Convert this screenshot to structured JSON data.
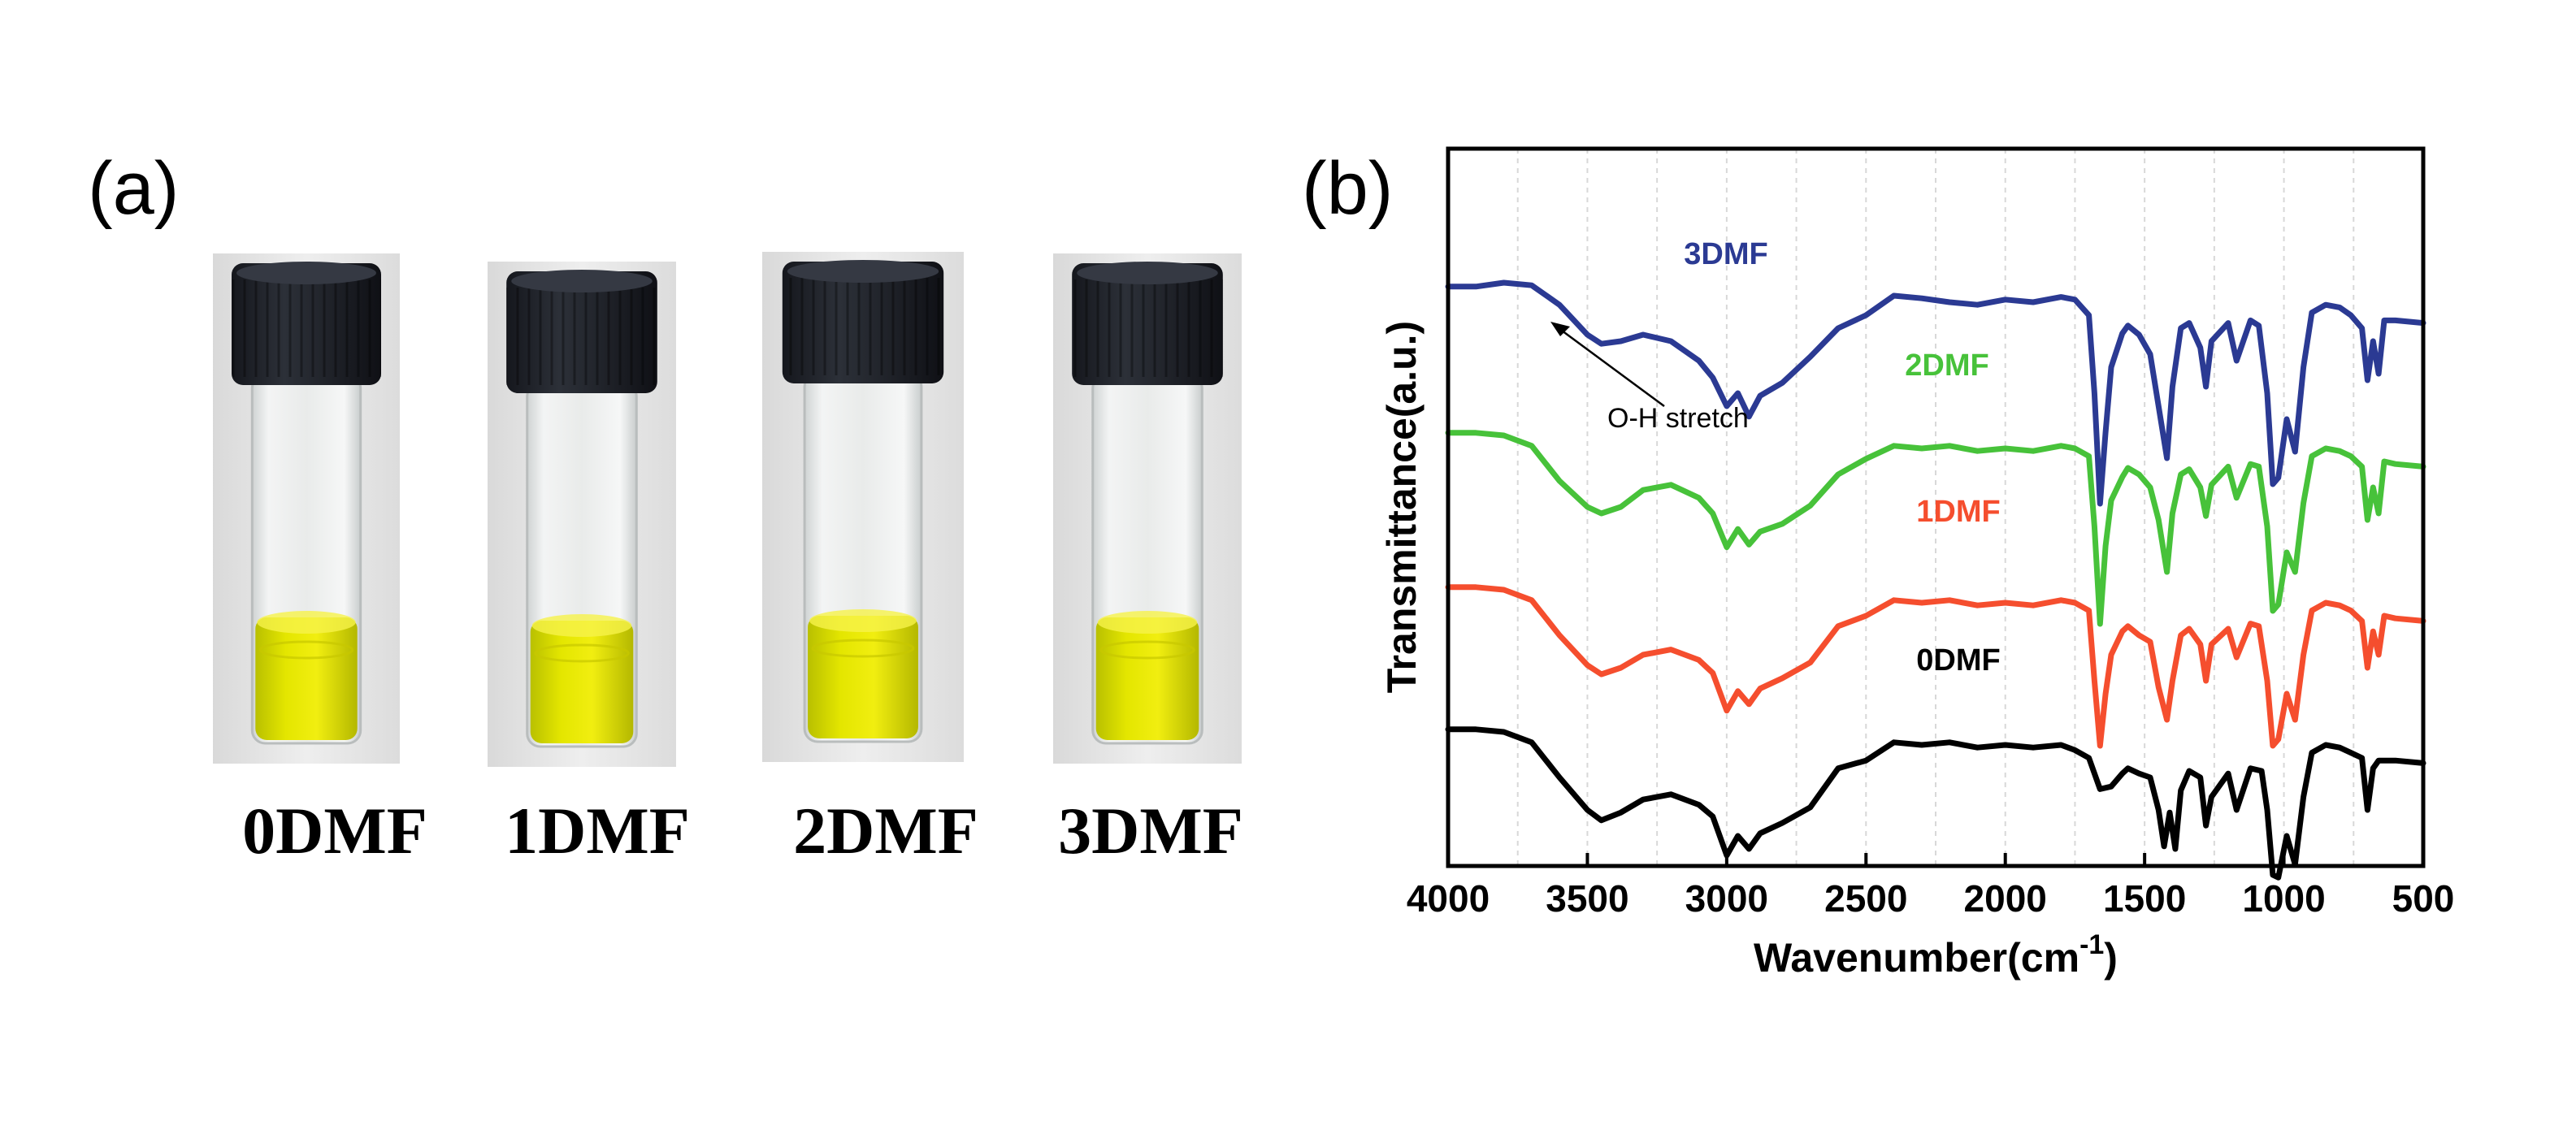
{
  "panel_a": {
    "label": "(a)",
    "vials": [
      {
        "label": "0DMF"
      },
      {
        "label": "1DMF"
      },
      {
        "label": "2DMF"
      },
      {
        "label": "3DMF"
      }
    ]
  },
  "panel_b": {
    "label": "(b)"
  },
  "chart_data": {
    "type": "line",
    "title": "",
    "xlabel": "Wavenumber(cm",
    "xlabel_sup": "-1",
    "xlabel_tail": ")",
    "ylabel": "Transmittance(a.u.)",
    "xlim": [
      4000,
      500
    ],
    "x_ticks": [
      4000,
      3500,
      3000,
      2500,
      2000,
      1500,
      1000,
      500
    ],
    "grid": "vertical dashed at 250 cm-1 intervals",
    "y_units": "arbitrary",
    "annotation": {
      "text": "O-H stretch",
      "target_x": 3400
    },
    "series": [
      {
        "name": "0DMF",
        "color": "#000000",
        "offset": 0,
        "points": [
          [
            4000,
            92
          ],
          [
            3900,
            92
          ],
          [
            3800,
            90
          ],
          [
            3700,
            82
          ],
          [
            3600,
            55
          ],
          [
            3500,
            30
          ],
          [
            3450,
            22
          ],
          [
            3380,
            28
          ],
          [
            3300,
            38
          ],
          [
            3200,
            42
          ],
          [
            3100,
            34
          ],
          [
            3050,
            25
          ],
          [
            3000,
            -5
          ],
          [
            2960,
            10
          ],
          [
            2920,
            0
          ],
          [
            2880,
            12
          ],
          [
            2800,
            20
          ],
          [
            2700,
            32
          ],
          [
            2600,
            62
          ],
          [
            2500,
            68
          ],
          [
            2400,
            82
          ],
          [
            2300,
            80
          ],
          [
            2200,
            82
          ],
          [
            2100,
            78
          ],
          [
            2000,
            80
          ],
          [
            1900,
            78
          ],
          [
            1800,
            80
          ],
          [
            1750,
            76
          ],
          [
            1700,
            70
          ],
          [
            1660,
            46
          ],
          [
            1620,
            48
          ],
          [
            1580,
            58
          ],
          [
            1560,
            62
          ],
          [
            1520,
            58
          ],
          [
            1480,
            55
          ],
          [
            1450,
            30
          ],
          [
            1430,
            2
          ],
          [
            1410,
            28
          ],
          [
            1390,
            0
          ],
          [
            1370,
            45
          ],
          [
            1340,
            60
          ],
          [
            1300,
            55
          ],
          [
            1280,
            18
          ],
          [
            1260,
            40
          ],
          [
            1200,
            58
          ],
          [
            1170,
            30
          ],
          [
            1120,
            62
          ],
          [
            1080,
            60
          ],
          [
            1060,
            30
          ],
          [
            1040,
            -20
          ],
          [
            1020,
            -22
          ],
          [
            990,
            10
          ],
          [
            960,
            -12
          ],
          [
            930,
            40
          ],
          [
            900,
            74
          ],
          [
            850,
            80
          ],
          [
            800,
            78
          ],
          [
            760,
            74
          ],
          [
            720,
            70
          ],
          [
            700,
            30
          ],
          [
            680,
            62
          ],
          [
            660,
            68
          ],
          [
            600,
            68
          ],
          [
            500,
            66
          ]
        ]
      },
      {
        "name": "1DMF",
        "color": "#f54e2e",
        "offset": 175,
        "points": [
          [
            4000,
            92
          ],
          [
            3900,
            92
          ],
          [
            3800,
            90
          ],
          [
            3700,
            82
          ],
          [
            3600,
            55
          ],
          [
            3500,
            32
          ],
          [
            3450,
            25
          ],
          [
            3380,
            30
          ],
          [
            3300,
            40
          ],
          [
            3200,
            44
          ],
          [
            3100,
            36
          ],
          [
            3050,
            26
          ],
          [
            3000,
            -3
          ],
          [
            2960,
            12
          ],
          [
            2920,
            2
          ],
          [
            2880,
            14
          ],
          [
            2800,
            22
          ],
          [
            2700,
            34
          ],
          [
            2600,
            62
          ],
          [
            2500,
            70
          ],
          [
            2400,
            82
          ],
          [
            2300,
            80
          ],
          [
            2200,
            82
          ],
          [
            2100,
            78
          ],
          [
            2000,
            80
          ],
          [
            1900,
            78
          ],
          [
            1800,
            82
          ],
          [
            1750,
            80
          ],
          [
            1700,
            74
          ],
          [
            1680,
            20
          ],
          [
            1660,
            -30
          ],
          [
            1640,
            10
          ],
          [
            1620,
            40
          ],
          [
            1580,
            58
          ],
          [
            1560,
            62
          ],
          [
            1520,
            55
          ],
          [
            1480,
            50
          ],
          [
            1450,
            15
          ],
          [
            1420,
            -10
          ],
          [
            1400,
            20
          ],
          [
            1370,
            55
          ],
          [
            1340,
            60
          ],
          [
            1300,
            48
          ],
          [
            1280,
            20
          ],
          [
            1260,
            48
          ],
          [
            1200,
            60
          ],
          [
            1170,
            38
          ],
          [
            1120,
            64
          ],
          [
            1090,
            62
          ],
          [
            1060,
            20
          ],
          [
            1040,
            -30
          ],
          [
            1020,
            -25
          ],
          [
            990,
            10
          ],
          [
            960,
            -10
          ],
          [
            930,
            40
          ],
          [
            900,
            74
          ],
          [
            850,
            80
          ],
          [
            800,
            78
          ],
          [
            760,
            74
          ],
          [
            720,
            66
          ],
          [
            700,
            30
          ],
          [
            680,
            58
          ],
          [
            660,
            40
          ],
          [
            640,
            70
          ],
          [
            600,
            68
          ],
          [
            500,
            66
          ]
        ]
      },
      {
        "name": "2DMF",
        "color": "#47c23a",
        "offset": 365,
        "points": [
          [
            4000,
            92
          ],
          [
            3900,
            92
          ],
          [
            3800,
            90
          ],
          [
            3700,
            82
          ],
          [
            3600,
            55
          ],
          [
            3500,
            35
          ],
          [
            3450,
            30
          ],
          [
            3380,
            35
          ],
          [
            3300,
            48
          ],
          [
            3200,
            52
          ],
          [
            3100,
            42
          ],
          [
            3050,
            30
          ],
          [
            3000,
            4
          ],
          [
            2960,
            18
          ],
          [
            2920,
            6
          ],
          [
            2880,
            16
          ],
          [
            2800,
            22
          ],
          [
            2700,
            36
          ],
          [
            2600,
            60
          ],
          [
            2500,
            72
          ],
          [
            2400,
            82
          ],
          [
            2300,
            80
          ],
          [
            2200,
            82
          ],
          [
            2100,
            78
          ],
          [
            2000,
            80
          ],
          [
            1900,
            78
          ],
          [
            1800,
            82
          ],
          [
            1750,
            80
          ],
          [
            1700,
            74
          ],
          [
            1680,
            20
          ],
          [
            1660,
            -55
          ],
          [
            1640,
            5
          ],
          [
            1620,
            40
          ],
          [
            1580,
            58
          ],
          [
            1560,
            65
          ],
          [
            1520,
            60
          ],
          [
            1480,
            50
          ],
          [
            1450,
            25
          ],
          [
            1420,
            -15
          ],
          [
            1400,
            30
          ],
          [
            1370,
            60
          ],
          [
            1340,
            64
          ],
          [
            1300,
            50
          ],
          [
            1280,
            28
          ],
          [
            1260,
            52
          ],
          [
            1200,
            66
          ],
          [
            1170,
            42
          ],
          [
            1120,
            68
          ],
          [
            1090,
            66
          ],
          [
            1060,
            20
          ],
          [
            1040,
            -45
          ],
          [
            1020,
            -40
          ],
          [
            990,
            0
          ],
          [
            960,
            -15
          ],
          [
            930,
            38
          ],
          [
            900,
            74
          ],
          [
            850,
            80
          ],
          [
            800,
            78
          ],
          [
            760,
            74
          ],
          [
            720,
            66
          ],
          [
            700,
            25
          ],
          [
            680,
            50
          ],
          [
            660,
            30
          ],
          [
            640,
            70
          ],
          [
            600,
            68
          ],
          [
            500,
            66
          ]
        ]
      },
      {
        "name": "3DMF",
        "color": "#2b3a93",
        "offset": 545,
        "points": [
          [
            4000,
            92
          ],
          [
            3900,
            92
          ],
          [
            3800,
            95
          ],
          [
            3700,
            93
          ],
          [
            3600,
            78
          ],
          [
            3500,
            55
          ],
          [
            3450,
            48
          ],
          [
            3380,
            50
          ],
          [
            3300,
            55
          ],
          [
            3200,
            50
          ],
          [
            3100,
            35
          ],
          [
            3050,
            22
          ],
          [
            3000,
            0
          ],
          [
            2960,
            10
          ],
          [
            2920,
            -8
          ],
          [
            2880,
            8
          ],
          [
            2800,
            18
          ],
          [
            2700,
            38
          ],
          [
            2600,
            60
          ],
          [
            2500,
            70
          ],
          [
            2400,
            85
          ],
          [
            2300,
            83
          ],
          [
            2200,
            80
          ],
          [
            2100,
            78
          ],
          [
            2000,
            82
          ],
          [
            1900,
            80
          ],
          [
            1800,
            84
          ],
          [
            1750,
            82
          ],
          [
            1700,
            70
          ],
          [
            1680,
            10
          ],
          [
            1660,
            -75
          ],
          [
            1640,
            -20
          ],
          [
            1620,
            30
          ],
          [
            1580,
            56
          ],
          [
            1560,
            62
          ],
          [
            1520,
            55
          ],
          [
            1480,
            40
          ],
          [
            1450,
            0
          ],
          [
            1420,
            -40
          ],
          [
            1400,
            15
          ],
          [
            1370,
            60
          ],
          [
            1340,
            64
          ],
          [
            1300,
            45
          ],
          [
            1280,
            15
          ],
          [
            1260,
            50
          ],
          [
            1200,
            64
          ],
          [
            1170,
            35
          ],
          [
            1120,
            66
          ],
          [
            1090,
            62
          ],
          [
            1060,
            10
          ],
          [
            1040,
            -60
          ],
          [
            1020,
            -55
          ],
          [
            990,
            -10
          ],
          [
            960,
            -35
          ],
          [
            930,
            30
          ],
          [
            900,
            72
          ],
          [
            850,
            78
          ],
          [
            800,
            76
          ],
          [
            760,
            70
          ],
          [
            720,
            60
          ],
          [
            700,
            20
          ],
          [
            680,
            50
          ],
          [
            660,
            25
          ],
          [
            640,
            66
          ],
          [
            600,
            66
          ],
          [
            500,
            64
          ]
        ]
      }
    ]
  }
}
